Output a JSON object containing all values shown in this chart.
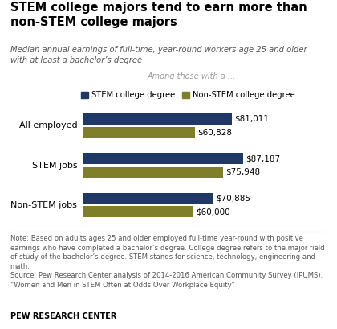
{
  "title": "STEM college majors tend to earn more than\nnon-STEM college majors",
  "subtitle": "Median annual earnings of full-time, year-round workers age 25 and older\nwith at least a bachelor’s degree",
  "legend_header": "Among those with a ...",
  "legend_labels": [
    "STEM college degree",
    "Non-STEM college degree"
  ],
  "categories": [
    "All employed",
    "STEM jobs",
    "Non-STEM jobs"
  ],
  "stem_values": [
    81011,
    87187,
    70885
  ],
  "nonstem_values": [
    60828,
    75948,
    60000
  ],
  "stem_labels": [
    "$81,011",
    "$87,187",
    "$70,885"
  ],
  "nonstem_labels": [
    "$60,828",
    "$75,948",
    "$60,000"
  ],
  "stem_color": "#1F3864",
  "nonstem_color": "#7F7F2A",
  "background_color": "#FFFFFF",
  "note_text": "Note: Based on adults ages 25 and older employed full-time year-round with positive\nearnings who have completed a bachelor’s degree. College degree refers to the major field\nof study of the bachelor’s degree. STEM stands for science, technology, engineering and\nmath.\nSource: Pew Research Center analysis of 2014-2016 American Community Survey (IPUMS).\n“Women and Men in STEM Often at Odds Over Workplace Equity”",
  "source_label": "PEW RESEARCH CENTER",
  "max_value": 95000
}
